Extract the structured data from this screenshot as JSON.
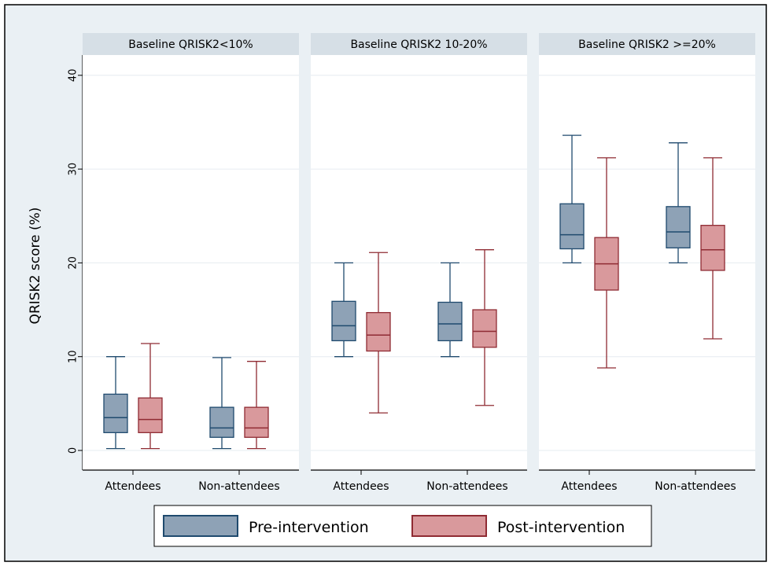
{
  "chart_data": {
    "type": "boxplot",
    "ylabel": "QRISK2 score (%)",
    "ylim": [
      0,
      40
    ],
    "yticks": [
      0,
      10,
      20,
      30,
      40
    ],
    "grid": true,
    "legend_position": "bottom",
    "categories": [
      "Attendees",
      "Non-attendees"
    ],
    "colors": {
      "pre_fill": "#8ea2b6",
      "pre_stroke": "#1f4a6e",
      "post_fill": "#d9999c",
      "post_stroke": "#8f2b33",
      "frame_bg": "#eaf0f4",
      "panel_header_bg": "#d6dfe6",
      "grid": "#e6ecf0"
    },
    "series": [
      {
        "name": "Pre-intervention",
        "key": "pre"
      },
      {
        "name": "Post-intervention",
        "key": "post"
      }
    ],
    "panels": [
      {
        "title": "Baseline QRISK2<10%",
        "groups": [
          {
            "category": "Attendees",
            "pre": {
              "min": 0.2,
              "q1": 1.9,
              "median": 3.5,
              "q3": 6.0,
              "max": 10.0
            },
            "post": {
              "min": 0.2,
              "q1": 1.9,
              "median": 3.3,
              "q3": 5.6,
              "max": 11.4
            }
          },
          {
            "category": "Non-attendees",
            "pre": {
              "min": 0.2,
              "q1": 1.4,
              "median": 2.4,
              "q3": 4.6,
              "max": 9.9
            },
            "post": {
              "min": 0.2,
              "q1": 1.4,
              "median": 2.4,
              "q3": 4.6,
              "max": 9.5
            }
          }
        ]
      },
      {
        "title": "Baseline QRISK2 10-20%",
        "groups": [
          {
            "category": "Attendees",
            "pre": {
              "min": 10.0,
              "q1": 11.7,
              "median": 13.3,
              "q3": 15.9,
              "max": 20.0
            },
            "post": {
              "min": 4.0,
              "q1": 10.6,
              "median": 12.3,
              "q3": 14.7,
              "max": 21.1
            }
          },
          {
            "category": "Non-attendees",
            "pre": {
              "min": 10.0,
              "q1": 11.7,
              "median": 13.5,
              "q3": 15.8,
              "max": 20.0
            },
            "post": {
              "min": 4.8,
              "q1": 11.0,
              "median": 12.7,
              "q3": 15.0,
              "max": 21.4
            }
          }
        ]
      },
      {
        "title": "Baseline QRISK2 >=20%",
        "groups": [
          {
            "category": "Attendees",
            "pre": {
              "min": 20.0,
              "q1": 21.5,
              "median": 23.0,
              "q3": 26.3,
              "max": 33.6
            },
            "post": {
              "min": 8.8,
              "q1": 17.1,
              "median": 19.9,
              "q3": 22.7,
              "max": 31.2
            }
          },
          {
            "category": "Non-attendees",
            "pre": {
              "min": 20.0,
              "q1": 21.6,
              "median": 23.3,
              "q3": 26.0,
              "max": 32.8
            },
            "post": {
              "min": 11.9,
              "q1": 19.2,
              "median": 21.4,
              "q3": 24.0,
              "max": 31.2
            }
          }
        ]
      }
    ]
  }
}
